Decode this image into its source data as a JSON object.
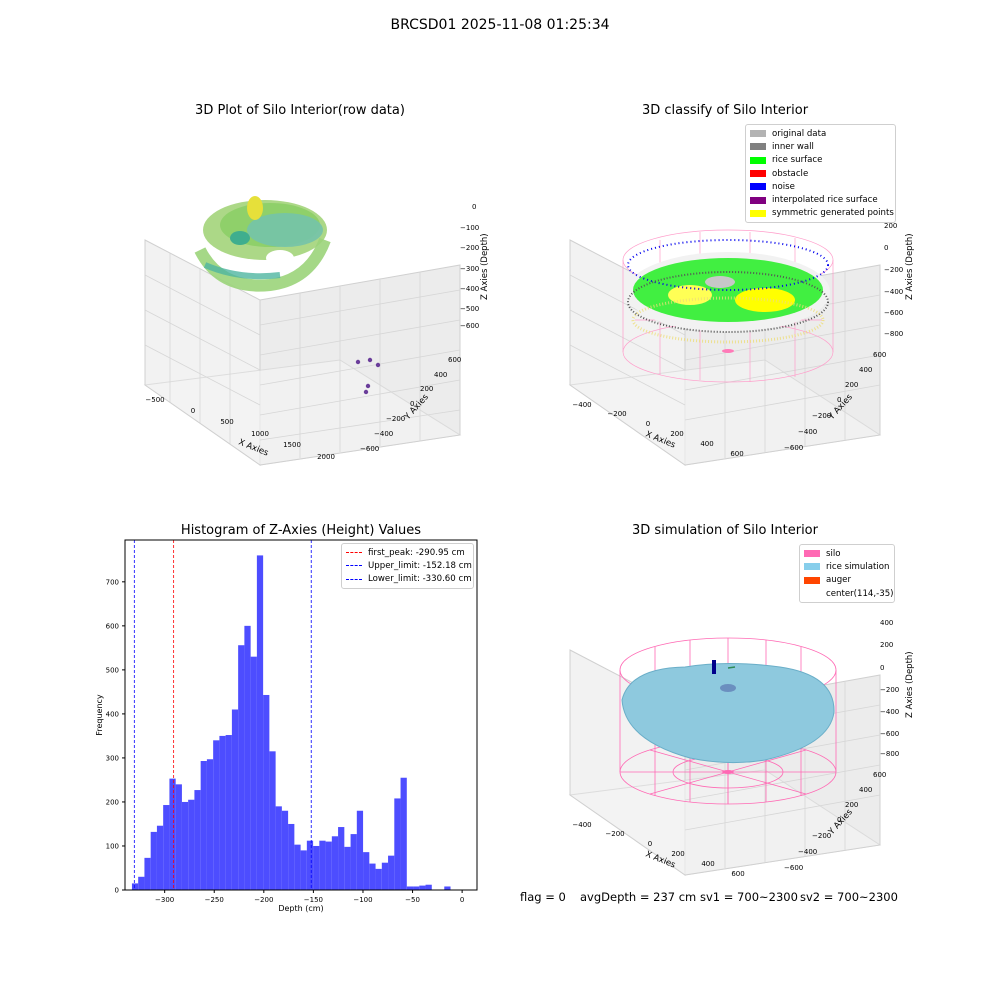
{
  "figure": {
    "suptitle": "BRCSD01 2025-11-08 01:25:34"
  },
  "panels": {
    "raw": {
      "title": "3D Plot of Silo Interior(row data)",
      "xlabel": "X Axies",
      "ylabel": "Y Axies",
      "zlabel": "Z Axies (Depth)",
      "xticks": [
        "−500",
        "0",
        "500",
        "1000",
        "1500",
        "2000"
      ],
      "yticks": [
        "600",
        "400",
        "200",
        "0",
        "−200",
        "−400",
        "−600"
      ],
      "zticks": [
        "0",
        "−100",
        "−200",
        "−300",
        "−400",
        "−500",
        "−600"
      ]
    },
    "classify": {
      "title": "3D classify of Silo Interior",
      "xlabel": "X Axies",
      "ylabel": "Y Axies",
      "zlabel": "Z Axies (Depth)",
      "xticks": [
        "−400",
        "−200",
        "0",
        "200",
        "400",
        "600"
      ],
      "yticks": [
        "600",
        "400",
        "200",
        "0",
        "−200",
        "−400",
        "−600"
      ],
      "zticks": [
        "200",
        "0",
        "−200",
        "−400",
        "−600",
        "−800"
      ],
      "legend": [
        {
          "label": "original data",
          "color": "#b3b3b3"
        },
        {
          "label": "inner wall",
          "color": "#808080"
        },
        {
          "label": "rice surface",
          "color": "#00ff00"
        },
        {
          "label": "obstacle",
          "color": "#ff0000"
        },
        {
          "label": "noise",
          "color": "#0000ff"
        },
        {
          "label": "interpolated rice surface",
          "color": "#800080"
        },
        {
          "label": "symmetric generated points",
          "color": "#ffff00"
        }
      ]
    },
    "simulation": {
      "title": "3D simulation of Silo Interior",
      "xlabel": "X Axies",
      "ylabel": "Y Axies",
      "zlabel": "Z Axies (Depth)",
      "xticks": [
        "−400",
        "−200",
        "0",
        "200",
        "400",
        "600"
      ],
      "yticks": [
        "600",
        "400",
        "200",
        "0",
        "−200",
        "−400",
        "−600"
      ],
      "zticks": [
        "400",
        "200",
        "0",
        "−200",
        "−400",
        "−600",
        "−800"
      ],
      "legend": [
        {
          "label": "silo",
          "color": "#ff69b4"
        },
        {
          "label": "rice simulation",
          "color": "#87ceeb"
        },
        {
          "label": "auger",
          "color": "#ff4500"
        },
        {
          "label": "center(114,-35)",
          "color": ""
        }
      ]
    }
  },
  "status": {
    "flag": "flag = 0",
    "avg_depth": "avgDepth = 237 cm",
    "sv1": "sv1 = 700~2300",
    "sv2": "sv2 = 700~2300"
  },
  "chart_data": [
    {
      "type": "bar",
      "title": "Histogram of Z-Axies (Height) Values",
      "xlabel": "Depth (cm)",
      "ylabel": "Frequency",
      "xlim": [
        -340,
        15
      ],
      "ylim": [
        0,
        795
      ],
      "xticks": [
        -300,
        -250,
        -200,
        -150,
        -100,
        -50,
        0
      ],
      "xticklabels": [
        "−300",
        "−250",
        "−200",
        "−150",
        "−100",
        "−50",
        "0"
      ],
      "yticks": [
        0,
        100,
        200,
        300,
        400,
        500,
        600,
        700
      ],
      "bar_color": "#4d4dff",
      "bin_edges": [
        -333.0,
        -326.7,
        -320.4,
        -314.1,
        -307.8,
        -301.5,
        -295.2,
        -288.9,
        -282.6,
        -276.3,
        -270.0,
        -263.7,
        -257.4,
        -251.1,
        -244.8,
        -238.5,
        -232.2,
        -225.9,
        -219.6,
        -213.3,
        -207.0,
        -200.7,
        -194.4,
        -188.1,
        -181.8,
        -175.5,
        -169.2,
        -162.9,
        -156.6,
        -150.3,
        -144.0,
        -137.7,
        -131.4,
        -125.1,
        -118.8,
        -112.5,
        -106.2,
        -99.9,
        -93.6,
        -87.3,
        -81.0,
        -74.7,
        -68.4,
        -62.1,
        -55.8,
        -49.5,
        -43.2,
        -36.9,
        -30.6,
        -24.3,
        -18.0,
        -11.7,
        -5.4,
        0.9
      ],
      "counts": [
        15,
        30,
        73,
        132,
        146,
        193,
        253,
        240,
        200,
        205,
        227,
        293,
        297,
        340,
        350,
        352,
        410,
        556,
        600,
        530,
        760,
        443,
        315,
        190,
        180,
        150,
        103,
        90,
        112,
        100,
        112,
        110,
        122,
        143,
        98,
        127,
        180,
        86,
        60,
        48,
        62,
        78,
        208,
        255,
        8,
        8,
        10,
        12,
        0,
        0,
        8,
        0,
        0
      ],
      "lines": [
        {
          "label": "first_peak: -290.95 cm",
          "x": -290.95,
          "color": "#ff0000"
        },
        {
          "label": "Upper_limit: -152.18 cm",
          "x": -152.18,
          "color": "#0000ff"
        },
        {
          "label": "Lower_limit: -330.60 cm",
          "x": -330.6,
          "color": "#0000ff"
        }
      ]
    }
  ]
}
